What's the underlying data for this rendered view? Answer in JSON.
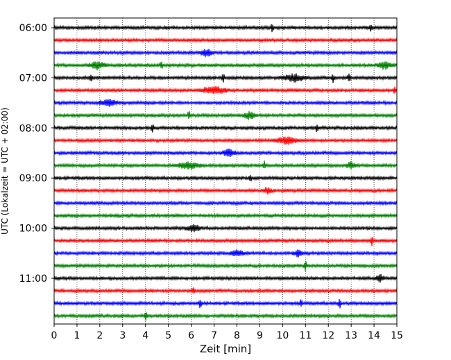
{
  "chart_data": {
    "type": "line",
    "title": "",
    "xlabel": "Zeit  [min]",
    "ylabel": "UTC (Lokalzeit = UTC + 02:00)",
    "xlim": [
      0,
      15
    ],
    "x_ticks": [
      "0",
      "1",
      "2",
      "3",
      "4",
      "5",
      "6",
      "7",
      "8",
      "9",
      "10",
      "11",
      "12",
      "13",
      "14",
      "15"
    ],
    "y_tick_labels": [
      "06:00",
      "07:00",
      "08:00",
      "09:00",
      "10:00",
      "11:00"
    ],
    "trace_interval_minutes": 15,
    "start_time": "06:00",
    "grid": "vertical dotted lines at each minute",
    "color_cycle": [
      "#000000",
      "#ff0000",
      "#0000ff",
      "#008000"
    ],
    "traces": [
      {
        "time": "06:00",
        "color": "black",
        "events_min": [
          9.55,
          13.85
        ],
        "bursts_min": []
      },
      {
        "time": "06:15",
        "color": "red",
        "events_min": [],
        "bursts_min": []
      },
      {
        "time": "06:30",
        "color": "blue",
        "events_min": [],
        "bursts_min": [
          [
            6.3,
            7.0
          ]
        ]
      },
      {
        "time": "06:45",
        "color": "green",
        "events_min": [
          4.7
        ],
        "bursts_min": [
          [
            1.4,
            2.4
          ],
          [
            14.0,
            15.0
          ]
        ]
      },
      {
        "time": "07:00",
        "color": "black",
        "events_min": [
          1.6,
          7.4,
          12.2,
          12.9
        ],
        "bursts_min": [
          [
            9.8,
            11.2
          ]
        ]
      },
      {
        "time": "07:15",
        "color": "red",
        "events_min": [
          14.9
        ],
        "bursts_min": [
          [
            6.2,
            7.8
          ]
        ]
      },
      {
        "time": "07:30",
        "color": "blue",
        "events_min": [],
        "bursts_min": [
          [
            1.8,
            2.9
          ]
        ]
      },
      {
        "time": "07:45",
        "color": "green",
        "events_min": [
          5.9
        ],
        "bursts_min": [
          [
            8.2,
            8.9
          ]
        ]
      },
      {
        "time": "08:00",
        "color": "black",
        "events_min": [
          4.3,
          11.5
        ],
        "bursts_min": []
      },
      {
        "time": "08:15",
        "color": "red",
        "events_min": [],
        "bursts_min": [
          [
            9.5,
            10.9
          ]
        ]
      },
      {
        "time": "08:30",
        "color": "blue",
        "events_min": [],
        "bursts_min": [
          [
            7.2,
            8.1
          ]
        ]
      },
      {
        "time": "08:45",
        "color": "green",
        "events_min": [
          9.2
        ],
        "bursts_min": [
          [
            5.2,
            6.6
          ],
          [
            12.7,
            13.3
          ]
        ]
      },
      {
        "time": "09:00",
        "color": "black",
        "events_min": [
          8.6
        ],
        "bursts_min": []
      },
      {
        "time": "09:15",
        "color": "red",
        "events_min": [],
        "bursts_min": [
          [
            9.1,
            9.6
          ]
        ]
      },
      {
        "time": "09:30",
        "color": "blue",
        "events_min": [],
        "bursts_min": []
      },
      {
        "time": "09:45",
        "color": "green",
        "events_min": [],
        "bursts_min": []
      },
      {
        "time": "10:00",
        "color": "black",
        "events_min": [],
        "bursts_min": [
          [
            5.7,
            6.5
          ]
        ]
      },
      {
        "time": "10:15",
        "color": "red",
        "events_min": [
          13.9
        ],
        "bursts_min": []
      },
      {
        "time": "10:30",
        "color": "blue",
        "events_min": [],
        "bursts_min": [
          [
            7.6,
            8.4
          ],
          [
            10.4,
            11.0
          ]
        ]
      },
      {
        "time": "10:45",
        "color": "green",
        "events_min": [
          11.0
        ],
        "bursts_min": []
      },
      {
        "time": "11:00",
        "color": "black",
        "events_min": [],
        "bursts_min": [
          [
            14.0,
            14.5
          ]
        ]
      },
      {
        "time": "11:15",
        "color": "red",
        "events_min": [
          6.1
        ],
        "bursts_min": []
      },
      {
        "time": "11:30",
        "color": "blue",
        "events_min": [
          6.4,
          10.8,
          12.5
        ],
        "bursts_min": []
      },
      {
        "time": "11:45",
        "color": "green",
        "events_min": [
          4.0
        ],
        "bursts_min": []
      }
    ]
  }
}
